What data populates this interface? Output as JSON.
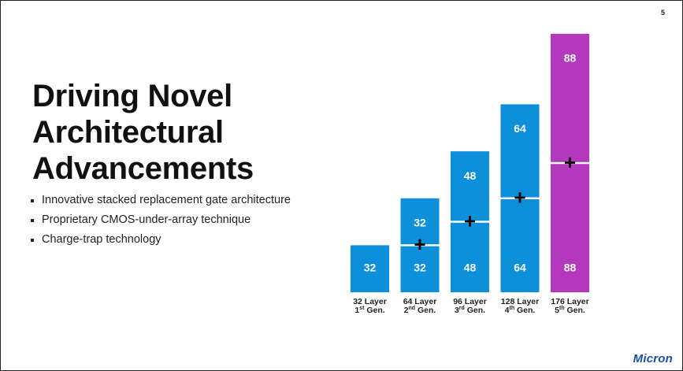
{
  "page_number": "5",
  "title_lines": [
    "Driving Novel",
    "Architectural",
    "Advancements"
  ],
  "bullets": [
    "Innovative stacked replacement gate architecture",
    "Proprietary CMOS-under-array technique",
    "Charge-trap technology"
  ],
  "logo": "Micron",
  "colors": {
    "blue": "#0d8fd9",
    "magenta": "#b338bd",
    "text": "#ffffff"
  },
  "chart_data": {
    "type": "bar",
    "stacked": true,
    "categories": [
      "32 Layer 1st Gen.",
      "64 Layer 2nd Gen.",
      "96 Layer 3rd Gen.",
      "128 Layer 4th Gen.",
      "176 Layer 5th Gen."
    ],
    "category_labels": [
      {
        "line1": "32 Layer",
        "num": "1",
        "sup": "st",
        "suffix": " Gen."
      },
      {
        "line1": "64 Layer",
        "num": "2",
        "sup": "nd",
        "suffix": " Gen."
      },
      {
        "line1": "96 Layer",
        "num": "3",
        "sup": "rd",
        "suffix": " Gen."
      },
      {
        "line1": "128 Layer",
        "num": "4",
        "sup": "th",
        "suffix": " Gen."
      },
      {
        "line1": "176 Layer",
        "num": "5",
        "sup": "th",
        "suffix": " Gen."
      }
    ],
    "series": [
      {
        "values": [
          32,
          32,
          48,
          64,
          88
        ]
      },
      {
        "values": [
          0,
          32,
          48,
          64,
          88
        ]
      }
    ],
    "bar_colors": [
      "#0d8fd9",
      "#0d8fd9",
      "#0d8fd9",
      "#0d8fd9",
      "#b338bd"
    ],
    "ylim": [
      0,
      176
    ]
  }
}
